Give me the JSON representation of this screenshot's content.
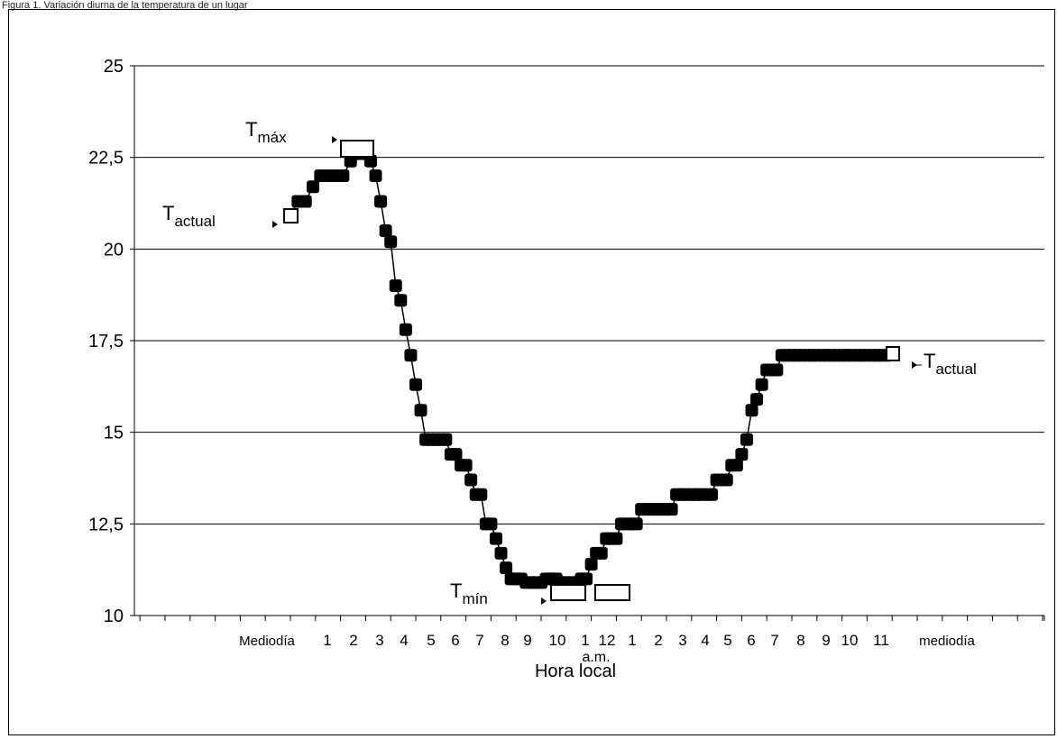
{
  "figure_caption": "Figura 1. Variación diurna de la temperatura de un lugar",
  "chart_data": {
    "type": "line",
    "title": "",
    "xlabel": "Hora local",
    "ylabel": "",
    "ylim": [
      10,
      25
    ],
    "yticks": [
      "10",
      "12,5",
      "15",
      "17,5",
      "20",
      "22,5",
      "25"
    ],
    "ytick_values": [
      10,
      12.5,
      15,
      17.5,
      20,
      22.5,
      25
    ],
    "xtick_labels": [
      "Mediodía",
      "1",
      "2",
      "3",
      "4",
      "5",
      "6",
      "7",
      "8",
      "9",
      "10",
      "1",
      "12",
      "1",
      "2",
      "3",
      "4",
      "5",
      "6",
      "7",
      "8",
      "9",
      "10",
      "11",
      "mediodía"
    ],
    "xtick_sublabel": "a.m.",
    "grid": true,
    "series": [
      {
        "x": [
          0,
          0.3,
          0.6,
          0.9,
          1.2,
          1.5,
          1.8,
          2.1,
          2.4,
          2.6,
          2.8,
          3.0,
          3.2,
          3.4,
          3.6,
          3.8,
          4.0,
          4.2,
          4.4,
          4.6,
          4.8,
          5.0,
          5.2,
          5.4,
          5.6,
          5.8,
          6.0,
          6.2,
          6.4,
          6.6,
          6.8,
          7.0,
          7.2,
          7.4,
          7.6,
          7.8,
          8.0,
          8.2,
          8.4,
          8.6,
          8.8,
          9.0,
          9.2,
          9.4,
          9.6,
          9.8,
          10.0,
          10.2,
          10.4,
          10.6,
          10.8,
          11.0,
          11.2,
          11.4,
          11.6,
          11.8,
          12.0,
          12.2,
          12.4,
          12.6,
          12.8,
          13.0,
          13.2,
          13.4,
          13.6,
          13.8,
          14.0,
          14.2,
          14.4,
          14.6,
          14.8,
          15.0,
          15.2,
          15.4,
          15.6,
          15.8,
          16.0,
          16.2,
          16.4,
          16.6,
          16.8,
          17.0,
          17.2,
          17.4,
          17.6,
          17.8,
          18.0,
          18.2,
          18.4,
          18.6,
          18.8,
          19.0,
          19.2,
          19.4,
          19.6,
          19.8,
          20.0,
          20.2,
          20.4,
          20.6,
          20.8,
          21.0,
          21.2,
          21.4,
          21.6,
          21.8,
          22.0,
          22.2,
          22.4,
          22.6,
          22.8,
          23.0,
          23.2,
          23.4,
          23.6,
          23.8
        ],
        "y": [
          20.9,
          21.3,
          21.3,
          21.7,
          22.0,
          22.0,
          22.0,
          22.0,
          22.4,
          22.6,
          22.7,
          22.6,
          22.4,
          22.0,
          21.3,
          20.5,
          20.2,
          19.0,
          18.6,
          17.8,
          17.1,
          16.3,
          15.6,
          14.8,
          14.8,
          14.8,
          14.8,
          14.8,
          14.4,
          14.4,
          14.1,
          14.1,
          13.7,
          13.3,
          13.3,
          12.5,
          12.5,
          12.1,
          11.7,
          11.3,
          11.0,
          11.0,
          11.0,
          10.9,
          10.9,
          10.9,
          10.9,
          11.0,
          11.0,
          11.0,
          10.9,
          10.9,
          10.9,
          10.9,
          11.0,
          11.0,
          11.4,
          11.7,
          11.7,
          12.1,
          12.1,
          12.1,
          12.5,
          12.5,
          12.5,
          12.5,
          12.9,
          12.9,
          12.9,
          12.9,
          12.9,
          12.9,
          12.9,
          13.3,
          13.3,
          13.3,
          13.3,
          13.3,
          13.3,
          13.3,
          13.3,
          13.7,
          13.7,
          13.7,
          14.1,
          14.1,
          14.4,
          14.8,
          15.6,
          15.9,
          16.3,
          16.7,
          16.7,
          16.7,
          17.1,
          17.1,
          17.1,
          17.1,
          17.1,
          17.1,
          17.1,
          17.1,
          17.1,
          17.1,
          17.1,
          17.1,
          17.1,
          17.1,
          17.1,
          17.1,
          17.1,
          17.1,
          17.1,
          17.1,
          17.1,
          17.1
        ]
      }
    ],
    "annotations": [
      {
        "main": "T",
        "sub": "máx"
      },
      {
        "main": "T",
        "sub": "actual"
      },
      {
        "main": "T",
        "sub": "mín"
      },
      {
        "main": "T",
        "sub": "actual"
      }
    ]
  }
}
